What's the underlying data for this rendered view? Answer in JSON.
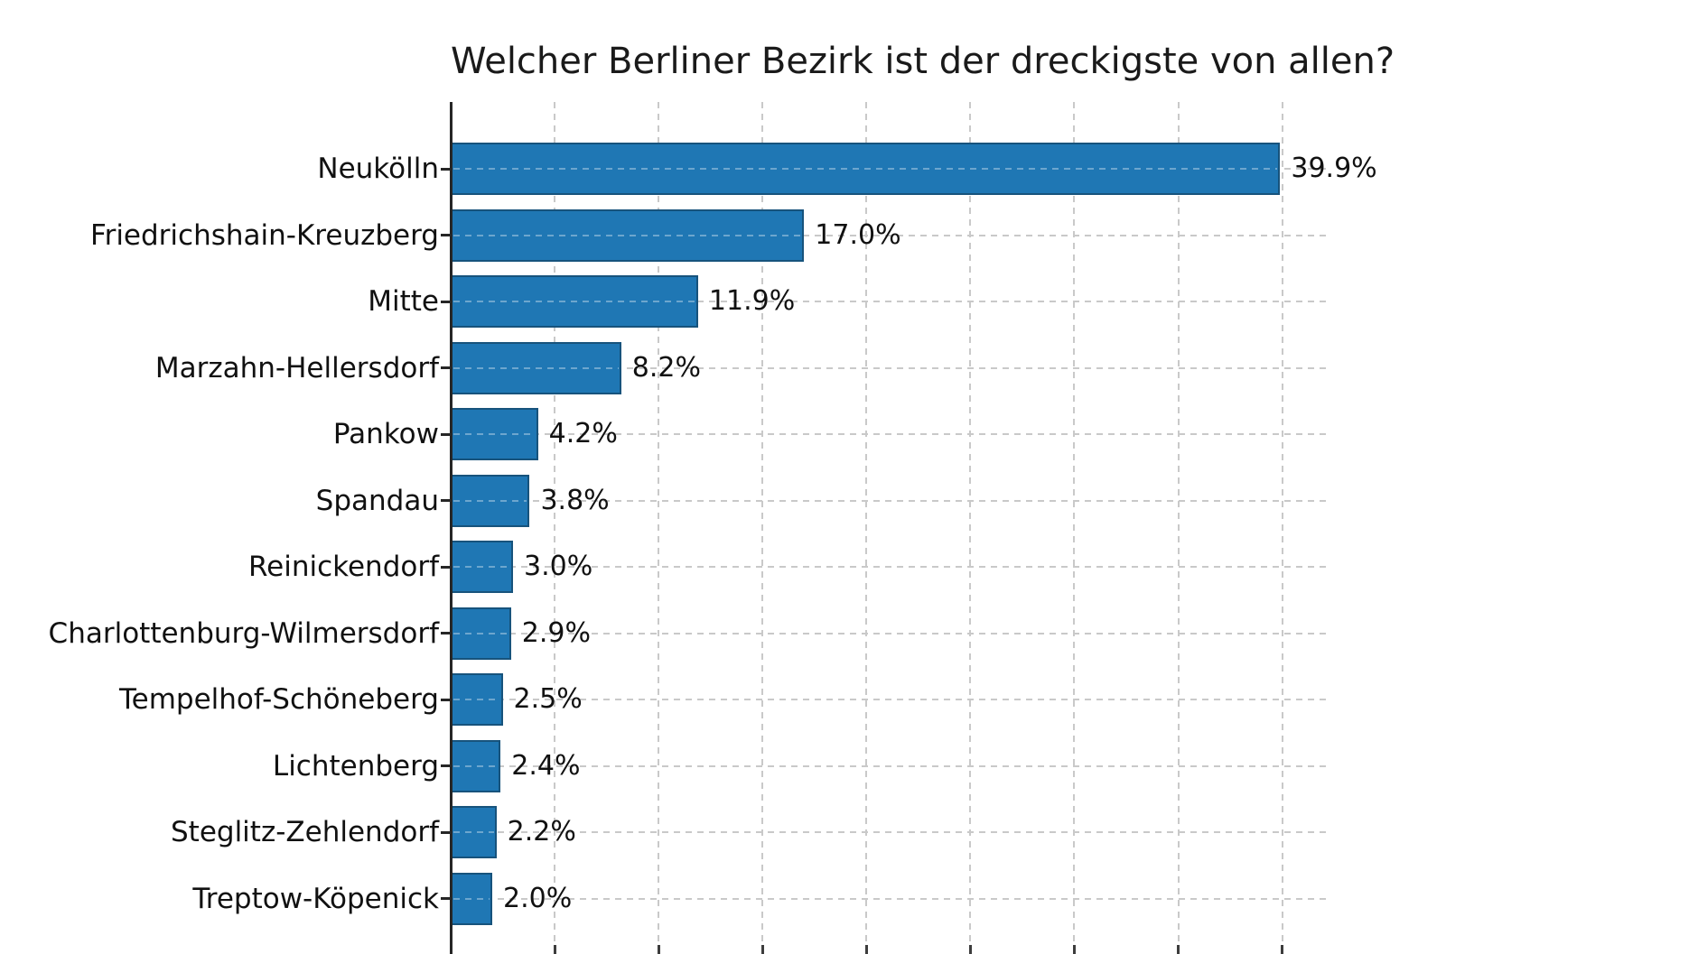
{
  "figure": {
    "background": "#ffffff"
  },
  "chart_data": {
    "type": "bar",
    "orientation": "horizontal",
    "title": "Welcher Berliner Bezirk ist der dreckigste von allen?",
    "categories": [
      "Neukölln",
      "Friedrichshain-Kreuzberg",
      "Mitte",
      "Marzahn-Hellersdorf",
      "Pankow",
      "Spandau",
      "Reinickendorf",
      "Charlottenburg-Wilmersdorf",
      "Tempelhof-Schöneberg",
      "Lichtenberg",
      "Steglitz-Zehlendorf",
      "Treptow-Köpenick"
    ],
    "values": [
      39.9,
      17.0,
      11.9,
      8.2,
      4.2,
      3.8,
      3.0,
      2.9,
      2.5,
      2.4,
      2.2,
      2.0
    ],
    "value_labels": [
      "39.9%",
      "17.0%",
      "11.9%",
      "8.2%",
      "4.2%",
      "3.8%",
      "3.0%",
      "2.9%",
      "2.5%",
      "2.4%",
      "2.2%",
      "2.0%"
    ],
    "xlabel": "",
    "ylabel": "",
    "xlim": [
      0,
      42.1
    ],
    "xticks": [
      0,
      5,
      10,
      15,
      20,
      25,
      30,
      35,
      40
    ],
    "xtick_labels_visible": false,
    "grid": {
      "on": true,
      "style": "dashed",
      "color": "#c9c9c9"
    },
    "legend": null,
    "bar_color": "#1f77b4",
    "bar_edge_color": "#17537c",
    "axis_color": "#262626",
    "text_color": "#111111"
  }
}
